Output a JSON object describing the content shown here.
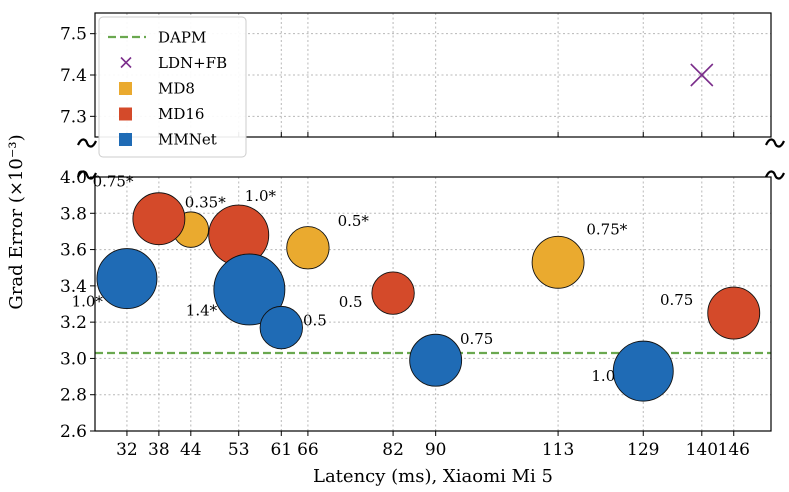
{
  "chart_data": {
    "type": "scatter",
    "xlabel": "Latency (ms), Xiaomi Mi 5",
    "ylabel": "Grad Error (×10⁻³)",
    "x_ticks": [
      32,
      38,
      44,
      53,
      61,
      66,
      82,
      90,
      113,
      129,
      140,
      146
    ],
    "x_tick_labels": [
      "32",
      "38",
      "44",
      "53",
      "61",
      "66",
      "82",
      "90",
      "113",
      "129",
      "140",
      "146"
    ],
    "xlim": [
      26,
      153
    ],
    "upper_panel": {
      "ylim": [
        7.25,
        7.55
      ],
      "y_ticks": [
        7.3,
        7.4,
        7.5
      ],
      "y_tick_labels": [
        "7.3",
        "7.4",
        "7.5"
      ]
    },
    "lower_panel": {
      "ylim": [
        2.6,
        4.0
      ],
      "y_ticks": [
        2.6,
        2.8,
        3.0,
        3.2,
        3.4,
        3.6,
        3.8,
        4.0
      ],
      "y_tick_labels": [
        "2.6",
        "2.8",
        "3.0",
        "3.2",
        "3.4",
        "3.6",
        "3.8",
        "4.0"
      ]
    },
    "reference_line": {
      "name": "DAPM",
      "y": 3.03,
      "color": "#6aa84f"
    },
    "legend": [
      {
        "name": "DAPM",
        "marker": "dashed-line",
        "color": "#6aa84f"
      },
      {
        "name": "LDN+FB",
        "marker": "x",
        "color": "#7b2d8b"
      },
      {
        "name": "MD8",
        "marker": "square",
        "color": "#eaaa2f"
      },
      {
        "name": "MD16",
        "marker": "square",
        "color": "#d44a2a"
      },
      {
        "name": "MMNet",
        "marker": "square",
        "color": "#1f6bb5"
      }
    ],
    "series": [
      {
        "name": "LDN+FB",
        "color": "#7b2d8b",
        "marker": "x",
        "points": [
          {
            "x": 140,
            "y": 7.4
          }
        ]
      },
      {
        "name": "MD8",
        "color": "#eaaa2f",
        "points": [
          {
            "x": 44,
            "y": 3.71,
            "size": 0.35,
            "label": "0.35*"
          },
          {
            "x": 66,
            "y": 3.61,
            "size": 0.5,
            "label": "0.5*"
          },
          {
            "x": 113,
            "y": 3.53,
            "size": 0.75,
            "label": "0.75*"
          }
        ]
      },
      {
        "name": "MD16",
        "color": "#d44a2a",
        "points": [
          {
            "x": 38,
            "y": 3.77,
            "size": 0.75,
            "label": "0.75*"
          },
          {
            "x": 53,
            "y": 3.68,
            "size": 1.0,
            "label": "1.0*"
          },
          {
            "x": 82,
            "y": 3.36,
            "size": 0.5,
            "label": "0.5"
          },
          {
            "x": 146,
            "y": 3.25,
            "size": 0.75,
            "label": "0.75"
          }
        ]
      },
      {
        "name": "MMNet",
        "color": "#1f6bb5",
        "points": [
          {
            "x": 32,
            "y": 3.44,
            "size": 1.0,
            "label": "1.0*"
          },
          {
            "x": 55,
            "y": 3.38,
            "size": 1.4,
            "label": "1.4*"
          },
          {
            "x": 61,
            "y": 3.17,
            "size": 0.5,
            "label": "0.5"
          },
          {
            "x": 90,
            "y": 2.99,
            "size": 0.75,
            "label": "0.75"
          },
          {
            "x": 129,
            "y": 2.93,
            "size": 1.0,
            "label": "1.0"
          }
        ]
      }
    ]
  }
}
